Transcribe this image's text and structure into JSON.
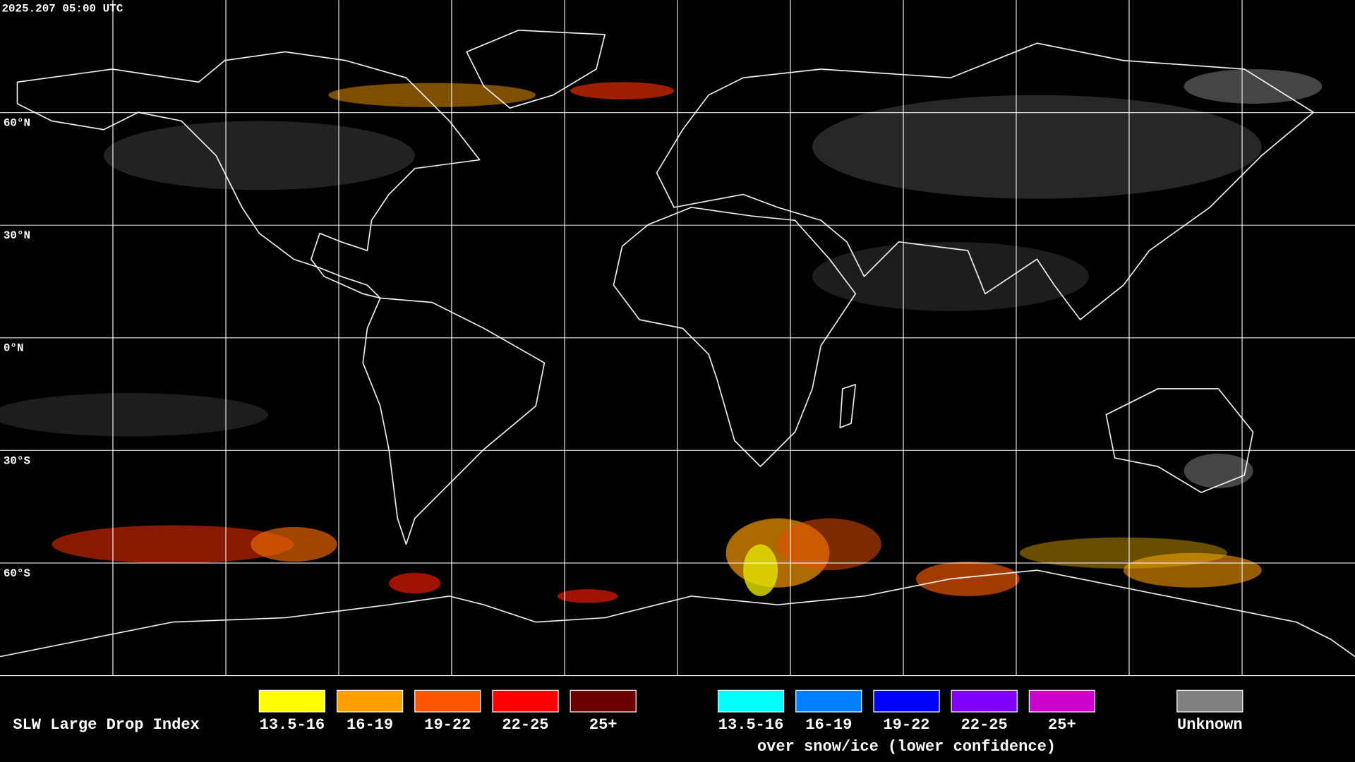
{
  "timestamp": "2025.207 05:00 UTC",
  "latitude_labels": [
    "60°N",
    "30°N",
    "0°N",
    "30°S",
    "60°S"
  ],
  "legend": {
    "title": "SLW Large Drop Index",
    "groups": [
      {
        "items": [
          {
            "label": "13.5-16",
            "color": "#ffff00"
          },
          {
            "label": "16-19",
            "color": "#ffa000"
          },
          {
            "label": "19-22",
            "color": "#ff5500"
          },
          {
            "label": "22-25",
            "color": "#ff0000"
          },
          {
            "label": "25+",
            "color": "#6b0000"
          }
        ]
      },
      {
        "items": [
          {
            "label": "13.5-16",
            "color": "#00ffff"
          },
          {
            "label": "16-19",
            "color": "#0080ff"
          },
          {
            "label": "19-22",
            "color": "#0000ff"
          },
          {
            "label": "22-25",
            "color": "#8000ff"
          },
          {
            "label": "25+",
            "color": "#cc00cc"
          }
        ],
        "caption": "over snow/ice (lower confidence)"
      },
      {
        "items": [
          {
            "label": "Unknown",
            "color": "#808080"
          }
        ]
      }
    ]
  }
}
